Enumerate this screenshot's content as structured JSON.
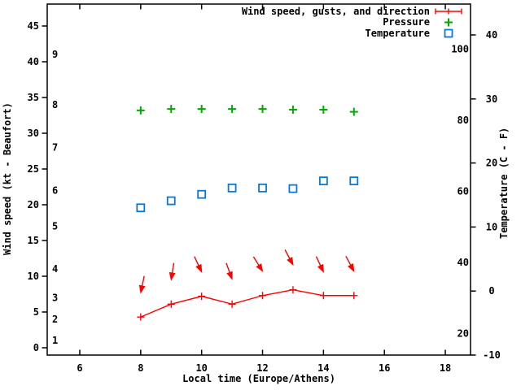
{
  "chart_data": {
    "type": "line",
    "title": "",
    "xlabel": "Local time (Europe/Athens)",
    "ylabel_left": "Wind speed (kt - Beaufort)",
    "ylabel_right": "Temperature (C - F)",
    "background_color": "#ffffff",
    "frame_color": "#000000",
    "x_axis": {
      "ticks": [
        6,
        8,
        10,
        12,
        14,
        16,
        18
      ],
      "range": [
        4.9,
        18.85
      ],
      "grid": false
    },
    "left_axis": {
      "unit": "kt",
      "ticks_kt": [
        0,
        5,
        10,
        15,
        20,
        25,
        30,
        35,
        40,
        45
      ],
      "range_kt": [
        -1.0,
        48.1
      ],
      "beaufort_inside_labels": [
        {
          "label": "1",
          "kt": 1
        },
        {
          "label": "2",
          "kt": 4
        },
        {
          "label": "3",
          "kt": 7
        },
        {
          "label": "4",
          "kt": 11
        },
        {
          "label": "5",
          "kt": 17
        },
        {
          "label": "6",
          "kt": 22
        },
        {
          "label": "7",
          "kt": 28
        },
        {
          "label": "8",
          "kt": 34
        },
        {
          "label": "9",
          "kt": 41
        }
      ]
    },
    "right_axis": {
      "unit": "C",
      "ticks_c": [
        -10,
        0,
        10,
        20,
        30,
        40
      ],
      "range_c": [
        -10,
        44.8
      ],
      "fahrenheit_inside_labels": [
        20,
        40,
        60,
        80,
        100
      ]
    },
    "x_values": [
      8,
      9,
      10,
      11,
      12,
      13,
      14,
      15
    ],
    "series": [
      {
        "name": "wind",
        "legend_label": "Wind speed, gusts, and direction",
        "color": "#ff0000",
        "axis": "left_kt",
        "speed_kt": [
          4.3,
          6.1,
          7.2,
          6.1,
          7.3,
          8.1,
          7.3,
          7.3
        ],
        "gust_kt": [
          7.7,
          9.5,
          10.6,
          9.6,
          10.7,
          11.6,
          10.6,
          10.7
        ],
        "gust_arrow_lean_deg": [
          -12,
          -9,
          25,
          20,
          32,
          28,
          25,
          28
        ]
      },
      {
        "name": "pressure",
        "legend_label": "Pressure",
        "color": "#00aa00",
        "axis": "unlabeled (marker height on left kt scale)",
        "values": [
          33.2,
          33.4,
          33.4,
          33.4,
          33.4,
          33.3,
          33.3,
          33.0
        ]
      },
      {
        "name": "temperature",
        "legend_label": "Temperature",
        "color": "#0a78d7",
        "axis": "right_c",
        "values_c": [
          13.0,
          14.1,
          15.1,
          16.1,
          16.1,
          16.0,
          17.2,
          17.2
        ]
      }
    ],
    "legend": {
      "position": "top-right-inside"
    }
  }
}
